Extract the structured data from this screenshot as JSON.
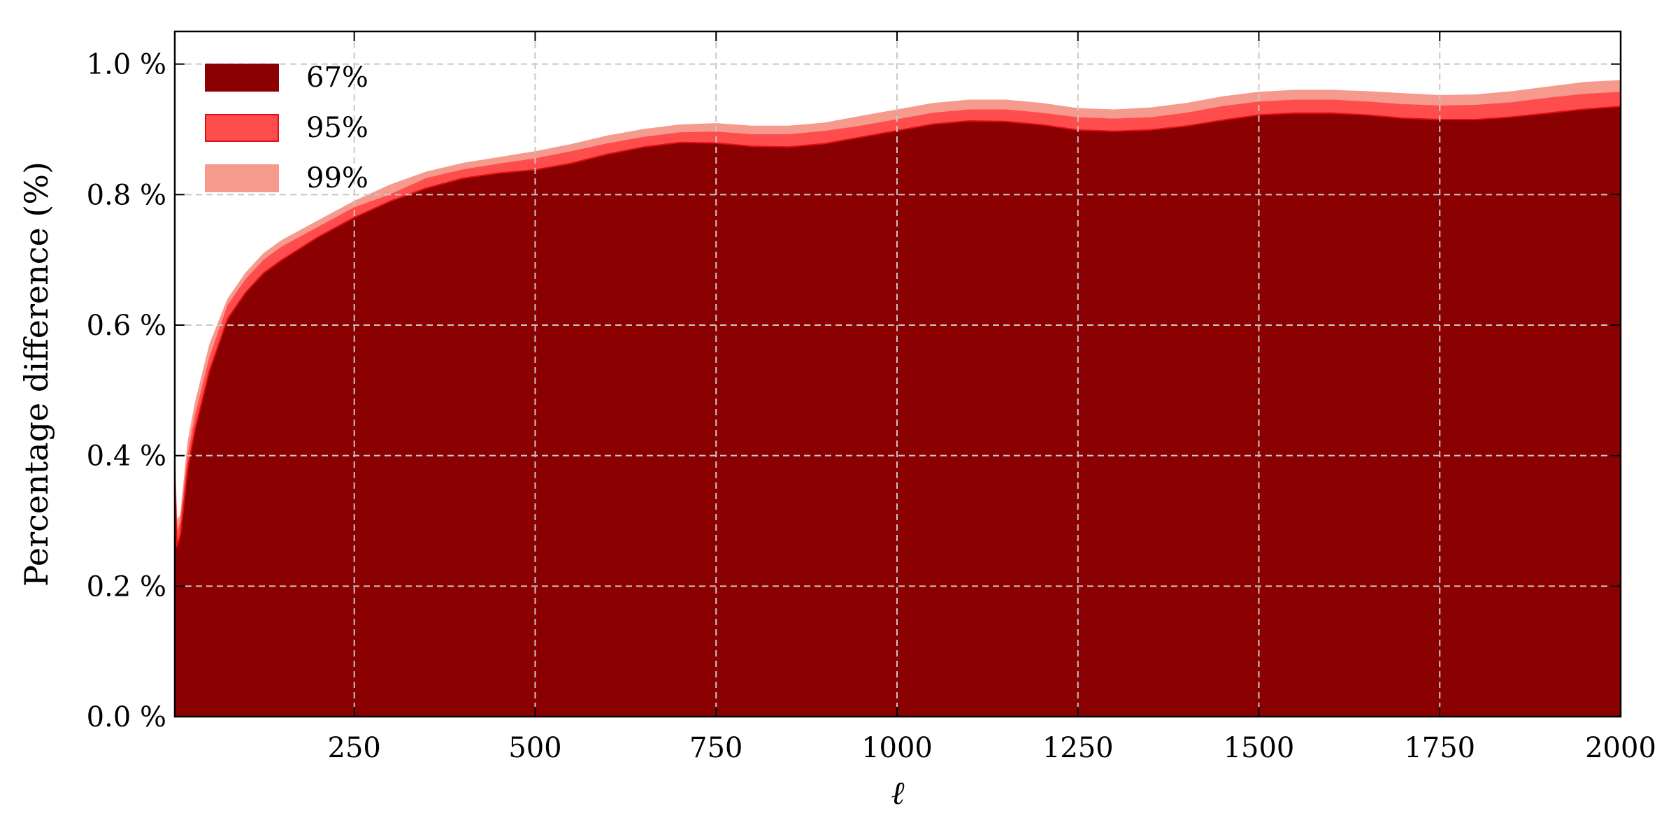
{
  "chart_data": {
    "type": "area",
    "title": "",
    "xlabel": "ℓ",
    "ylabel": "Percentage difference (%)",
    "xlim": [
      2,
      2000
    ],
    "ylim": [
      0.0,
      1.05
    ],
    "xticks": [
      250,
      500,
      750,
      1000,
      1250,
      1500,
      1750,
      2000
    ],
    "xtick_labels": [
      "250",
      "500",
      "750",
      "1000",
      "1250",
      "1500",
      "1750",
      "2000"
    ],
    "yticks": [
      0.0,
      0.2,
      0.4,
      0.6,
      0.8,
      1.0
    ],
    "ytick_labels": [
      "0.0 %",
      "0.2 %",
      "0.4 %",
      "0.6 %",
      "0.8 %",
      "1.0 %"
    ],
    "grid": true,
    "legend_position": "top-left",
    "x": [
      2,
      5,
      10,
      20,
      30,
      50,
      75,
      100,
      125,
      150,
      200,
      250,
      300,
      350,
      400,
      450,
      500,
      550,
      600,
      650,
      700,
      750,
      800,
      850,
      900,
      950,
      1000,
      1050,
      1100,
      1150,
      1200,
      1250,
      1300,
      1350,
      1400,
      1450,
      1500,
      1550,
      1600,
      1650,
      1700,
      1750,
      1800,
      1850,
      1900,
      1950,
      2000
    ],
    "series": [
      {
        "name": "99%",
        "color": "#f59a8c",
        "values": [
          0.4,
          0.3,
          0.31,
          0.42,
          0.48,
          0.57,
          0.64,
          0.68,
          0.71,
          0.73,
          0.76,
          0.79,
          0.815,
          0.835,
          0.848,
          0.857,
          0.866,
          0.877,
          0.89,
          0.9,
          0.907,
          0.909,
          0.905,
          0.905,
          0.91,
          0.92,
          0.93,
          0.94,
          0.945,
          0.945,
          0.94,
          0.932,
          0.93,
          0.933,
          0.94,
          0.95,
          0.957,
          0.96,
          0.96,
          0.958,
          0.955,
          0.952,
          0.953,
          0.958,
          0.965,
          0.972,
          0.975
        ]
      },
      {
        "name": "95%",
        "color": "#ff4d4d",
        "values": [
          0.38,
          0.28,
          0.3,
          0.4,
          0.46,
          0.55,
          0.63,
          0.67,
          0.7,
          0.72,
          0.75,
          0.78,
          0.8,
          0.825,
          0.838,
          0.847,
          0.855,
          0.866,
          0.878,
          0.888,
          0.895,
          0.896,
          0.892,
          0.892,
          0.897,
          0.905,
          0.915,
          0.925,
          0.93,
          0.93,
          0.925,
          0.918,
          0.916,
          0.918,
          0.925,
          0.935,
          0.942,
          0.945,
          0.945,
          0.942,
          0.938,
          0.936,
          0.937,
          0.941,
          0.948,
          0.954,
          0.957
        ]
      },
      {
        "name": "67%",
        "color": "#8b0000",
        "values": [
          0.35,
          0.26,
          0.28,
          0.38,
          0.44,
          0.53,
          0.61,
          0.65,
          0.68,
          0.7,
          0.735,
          0.765,
          0.79,
          0.81,
          0.825,
          0.833,
          0.838,
          0.848,
          0.862,
          0.873,
          0.88,
          0.879,
          0.874,
          0.873,
          0.878,
          0.888,
          0.898,
          0.908,
          0.913,
          0.912,
          0.907,
          0.899,
          0.897,
          0.899,
          0.905,
          0.914,
          0.922,
          0.925,
          0.925,
          0.922,
          0.917,
          0.915,
          0.915,
          0.919,
          0.925,
          0.931,
          0.935
        ]
      }
    ],
    "legend": [
      "67%",
      "95%",
      "99%"
    ]
  }
}
